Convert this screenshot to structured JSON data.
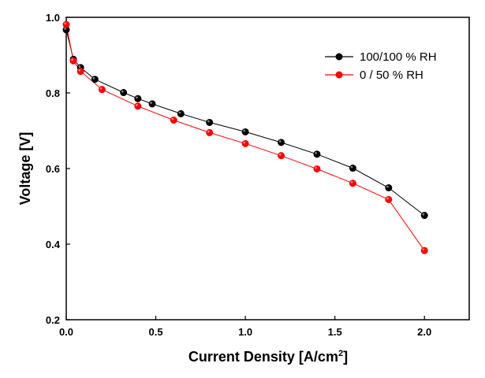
{
  "chart_data": {
    "type": "line",
    "xlabel": "Current Density [A/cm",
    "xlabel_sup": "2",
    "xlabel_suffix": "]",
    "ylabel": "Voltage [V]",
    "xlim": [
      0.0,
      2.25
    ],
    "ylim": [
      0.2,
      1.0
    ],
    "xticks": [
      "0.0",
      "0.5",
      "1.0",
      "1.5",
      "2.0"
    ],
    "yticks": [
      "0.2",
      "0.4",
      "0.6",
      "0.8",
      "1.0"
    ],
    "xtick_values": [
      0.0,
      0.5,
      1.0,
      1.5,
      2.0
    ],
    "ytick_values": [
      0.2,
      0.4,
      0.6,
      0.8,
      1.0
    ],
    "grid": false,
    "legend_position": "top-right",
    "series": [
      {
        "name": "100/100 % RH",
        "color": "#000000",
        "x": [
          0.0,
          0.04,
          0.08,
          0.16,
          0.32,
          0.4,
          0.48,
          0.64,
          0.8,
          1.0,
          1.2,
          1.4,
          1.6,
          1.8,
          2.0
        ],
        "y": [
          0.967,
          0.889,
          0.867,
          0.836,
          0.801,
          0.785,
          0.771,
          0.745,
          0.722,
          0.697,
          0.669,
          0.638,
          0.601,
          0.549,
          0.476
        ]
      },
      {
        "name": "0 / 50 % RH",
        "color": "#ff0000",
        "x": [
          0.0,
          0.04,
          0.08,
          0.2,
          0.4,
          0.6,
          0.8,
          1.0,
          1.2,
          1.4,
          1.6,
          1.8,
          2.0
        ],
        "y": [
          0.981,
          0.885,
          0.857,
          0.809,
          0.765,
          0.728,
          0.695,
          0.666,
          0.634,
          0.599,
          0.561,
          0.518,
          0.383
        ]
      }
    ]
  }
}
